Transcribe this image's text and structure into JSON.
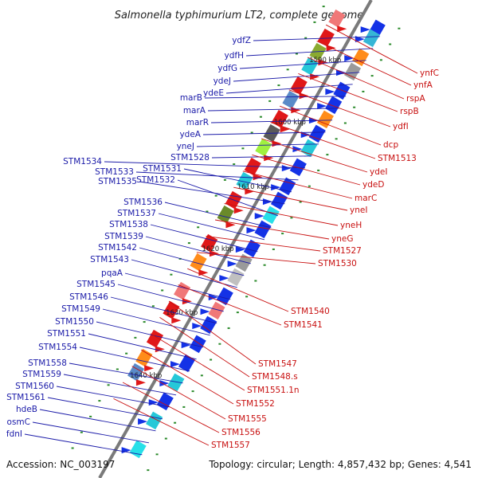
{
  "title": "Salmonella typhimurium LT2, complete genome",
  "footer": {
    "accession": "Accession: NC_003197",
    "topology": "Topology: circular; Length: 4,857,432 bp; Genes: 4,541"
  },
  "colors": {
    "left_label": "#1a1aa8",
    "right_label": "#c81010",
    "backbone": "#7a7a7a",
    "tick": "#2a8a2a"
  },
  "kbp_labels": [
    {
      "text": "1590 kbp",
      "t": 0.12
    },
    {
      "text": "1600 kbp",
      "t": 0.25
    },
    {
      "text": "1610 kbp",
      "t": 0.385
    },
    {
      "text": "1620 kbp",
      "t": 0.515
    },
    {
      "text": "1630 kbp",
      "t": 0.648
    },
    {
      "text": "1640 kbp",
      "t": 0.78
    }
  ],
  "left_genes": [
    "ydfZ",
    "ydfH",
    "ydfG",
    "ydeJ",
    "ydeE",
    "marB",
    "marA",
    "marR",
    "ydeA",
    "yneJ",
    "STM1528",
    "STM1534",
    "STM1533",
    "STM1531",
    "STM1535",
    "STM1532",
    "STM1536",
    "STM1537",
    "STM1538",
    "STM1539",
    "STM1542",
    "STM1543",
    "pqaA",
    "STM1545",
    "STM1546",
    "STM1549",
    "STM1550",
    "STM1551",
    "STM1554",
    "STM1558",
    "STM1559",
    "STM1560",
    "STM1561",
    "hdeB",
    "osmC",
    "fdnI"
  ],
  "right_genes": [
    "ynfC",
    "ynfA",
    "rspA",
    "rspB",
    "ydfI",
    "dcp",
    "STM1513",
    "ydeI",
    "ydeD",
    "marC",
    "yneI",
    "yneH",
    "yneG",
    "STM1527",
    "STM1530",
    "STM1540",
    "STM1541",
    "STM1547",
    "STM1548.s",
    "STM1551.1n",
    "STM1552",
    "STM1555",
    "STM1556",
    "STM1557"
  ]
}
